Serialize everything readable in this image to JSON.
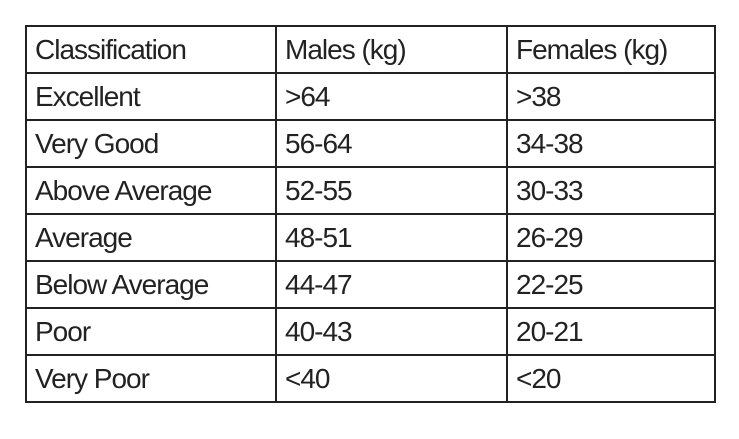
{
  "table": {
    "headers": [
      "Classification",
      "Males (kg)",
      "Females (kg)"
    ],
    "rows": [
      [
        "Excellent",
        ">64",
        ">38"
      ],
      [
        "Very Good",
        "56-64",
        "34-38"
      ],
      [
        "Above Average",
        "52-55",
        "30-33"
      ],
      [
        "Average",
        "48-51",
        "26-29"
      ],
      [
        "Below Average",
        "44-47",
        "22-25"
      ],
      [
        "Poor",
        "40-43",
        "20-21"
      ],
      [
        "Very Poor",
        "<40",
        "<20"
      ]
    ]
  }
}
